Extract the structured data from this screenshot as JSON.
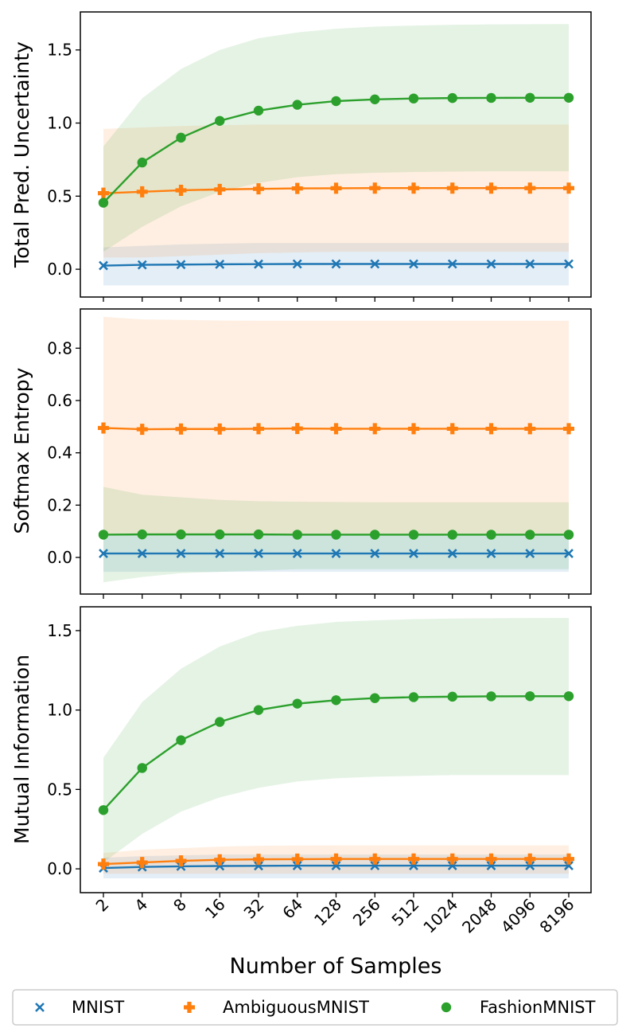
{
  "figure": {
    "xlabel": "Number of Samples",
    "x_tick_labels": [
      "2",
      "4",
      "8",
      "16",
      "32",
      "64",
      "128",
      "256",
      "512",
      "1024",
      "2048",
      "4096",
      "8196"
    ],
    "legend": [
      {
        "name": "MNIST",
        "marker": "x",
        "color": "#1f77b4"
      },
      {
        "name": "AmbiguousMNIST",
        "marker": "plus",
        "color": "#ff7f0e"
      },
      {
        "name": "FashionMNIST",
        "marker": "circle",
        "color": "#2ca02c"
      }
    ],
    "legend_placement": "bottom-center"
  },
  "chart_data": [
    {
      "type": "line",
      "ylabel": "Total Pred. Uncertainty",
      "ylim": [
        -0.19,
        1.76
      ],
      "yticks": [
        0.0,
        0.5,
        1.0,
        1.5
      ],
      "ytick_labels": [
        "0.0",
        "0.5",
        "1.0",
        "1.5"
      ],
      "x": [
        2,
        4,
        8,
        16,
        32,
        64,
        128,
        256,
        512,
        1024,
        2048,
        4096,
        8196
      ],
      "series": [
        {
          "name": "MNIST",
          "color": "#1f77b4",
          "marker": "x",
          "values": [
            0.025,
            0.03,
            0.032,
            0.034,
            0.035,
            0.036,
            0.036,
            0.036,
            0.036,
            0.036,
            0.036,
            0.036,
            0.036
          ],
          "band_lower": [
            -0.11,
            -0.11,
            -0.11,
            -0.11,
            -0.11,
            -0.11,
            -0.11,
            -0.11,
            -0.11,
            -0.11,
            -0.11,
            -0.11,
            -0.11
          ],
          "band_upper": [
            0.15,
            0.16,
            0.17,
            0.175,
            0.18,
            0.18,
            0.18,
            0.18,
            0.18,
            0.18,
            0.18,
            0.18,
            0.18
          ]
        },
        {
          "name": "AmbiguousMNIST",
          "color": "#ff7f0e",
          "marker": "plus",
          "values": [
            0.52,
            0.53,
            0.54,
            0.546,
            0.55,
            0.553,
            0.554,
            0.555,
            0.555,
            0.555,
            0.555,
            0.555,
            0.555
          ],
          "band_lower": [
            0.08,
            0.08,
            0.09,
            0.1,
            0.11,
            0.115,
            0.12,
            0.12,
            0.12,
            0.12,
            0.12,
            0.12,
            0.12
          ],
          "band_upper": [
            0.96,
            0.97,
            0.98,
            0.985,
            0.99,
            0.99,
            0.99,
            0.99,
            0.99,
            0.99,
            0.99,
            0.99,
            0.99
          ]
        },
        {
          "name": "FashionMNIST",
          "color": "#2ca02c",
          "marker": "circle",
          "values": [
            0.455,
            0.73,
            0.9,
            1.015,
            1.085,
            1.125,
            1.15,
            1.162,
            1.168,
            1.171,
            1.172,
            1.173,
            1.173
          ],
          "band_lower": [
            0.12,
            0.29,
            0.43,
            0.53,
            0.59,
            0.63,
            0.65,
            0.66,
            0.665,
            0.668,
            0.67,
            0.67,
            0.67
          ],
          "band_upper": [
            0.84,
            1.17,
            1.37,
            1.5,
            1.58,
            1.62,
            1.645,
            1.66,
            1.667,
            1.672,
            1.675,
            1.676,
            1.677
          ]
        }
      ]
    },
    {
      "type": "line",
      "ylabel": "Softmax Entropy",
      "ylim": [
        -0.14,
        0.95
      ],
      "yticks": [
        0.0,
        0.2,
        0.4,
        0.6,
        0.8
      ],
      "ytick_labels": [
        "0.0",
        "0.2",
        "0.4",
        "0.6",
        "0.8"
      ],
      "x": [
        2,
        4,
        8,
        16,
        32,
        64,
        128,
        256,
        512,
        1024,
        2048,
        4096,
        8196
      ],
      "series": [
        {
          "name": "MNIST",
          "color": "#1f77b4",
          "marker": "x",
          "values": [
            0.015,
            0.015,
            0.015,
            0.015,
            0.015,
            0.015,
            0.015,
            0.015,
            0.015,
            0.015,
            0.015,
            0.015,
            0.015
          ],
          "band_lower": [
            -0.055,
            -0.055,
            -0.055,
            -0.055,
            -0.055,
            -0.055,
            -0.055,
            -0.055,
            -0.055,
            -0.055,
            -0.055,
            -0.055,
            -0.055
          ],
          "band_upper": [
            0.085,
            0.085,
            0.085,
            0.085,
            0.085,
            0.085,
            0.085,
            0.085,
            0.085,
            0.085,
            0.085,
            0.085,
            0.085
          ]
        },
        {
          "name": "AmbiguousMNIST",
          "color": "#ff7f0e",
          "marker": "plus",
          "values": [
            0.495,
            0.49,
            0.491,
            0.491,
            0.492,
            0.493,
            0.492,
            0.492,
            0.492,
            0.492,
            0.492,
            0.492,
            0.492
          ],
          "band_lower": [
            0.085,
            0.085,
            0.085,
            0.085,
            0.085,
            0.085,
            0.085,
            0.085,
            0.085,
            0.085,
            0.085,
            0.085,
            0.085
          ],
          "band_upper": [
            0.92,
            0.91,
            0.908,
            0.906,
            0.905,
            0.905,
            0.905,
            0.905,
            0.905,
            0.905,
            0.905,
            0.905,
            0.905
          ]
        },
        {
          "name": "FashionMNIST",
          "color": "#2ca02c",
          "marker": "circle",
          "values": [
            0.087,
            0.088,
            0.088,
            0.088,
            0.088,
            0.087,
            0.087,
            0.087,
            0.087,
            0.087,
            0.087,
            0.087,
            0.087
          ],
          "band_lower": [
            -0.095,
            -0.075,
            -0.06,
            -0.055,
            -0.05,
            -0.045,
            -0.045,
            -0.045,
            -0.045,
            -0.045,
            -0.045,
            -0.045,
            -0.045
          ],
          "band_upper": [
            0.27,
            0.24,
            0.23,
            0.22,
            0.215,
            0.213,
            0.212,
            0.211,
            0.211,
            0.211,
            0.211,
            0.211,
            0.211
          ]
        }
      ]
    },
    {
      "type": "line",
      "ylabel": "Mutual Information",
      "ylabel2": "",
      "ylim": [
        -0.15,
        1.65
      ],
      "yticks": [
        0.0,
        0.5,
        1.0,
        1.5
      ],
      "ytick_labels": [
        "0.0",
        "0.5",
        "1.0",
        "1.5"
      ],
      "x": [
        2,
        4,
        8,
        16,
        32,
        64,
        128,
        256,
        512,
        1024,
        2048,
        4096,
        8196
      ],
      "series": [
        {
          "name": "MNIST",
          "color": "#1f77b4",
          "marker": "x",
          "values": [
            0.005,
            0.012,
            0.016,
            0.018,
            0.019,
            0.02,
            0.02,
            0.02,
            0.02,
            0.02,
            0.02,
            0.02,
            0.02
          ],
          "band_lower": [
            -0.06,
            -0.06,
            -0.06,
            -0.06,
            -0.06,
            -0.06,
            -0.06,
            -0.06,
            -0.06,
            -0.06,
            -0.06,
            -0.06,
            -0.06
          ],
          "band_upper": [
            0.07,
            0.08,
            0.085,
            0.09,
            0.09,
            0.09,
            0.09,
            0.09,
            0.09,
            0.09,
            0.09,
            0.09,
            0.09
          ]
        },
        {
          "name": "AmbiguousMNIST",
          "color": "#ff7f0e",
          "marker": "plus",
          "values": [
            0.03,
            0.04,
            0.05,
            0.057,
            0.06,
            0.061,
            0.062,
            0.062,
            0.062,
            0.062,
            0.062,
            0.062,
            0.062
          ],
          "band_lower": [
            -0.03,
            -0.03,
            -0.03,
            -0.03,
            -0.03,
            -0.03,
            -0.03,
            -0.03,
            -0.03,
            -0.03,
            -0.03,
            -0.03,
            -0.03
          ],
          "band_upper": [
            0.1,
            0.12,
            0.13,
            0.14,
            0.145,
            0.147,
            0.148,
            0.148,
            0.148,
            0.148,
            0.148,
            0.148,
            0.148
          ]
        },
        {
          "name": "FashionMNIST",
          "color": "#2ca02c",
          "marker": "circle",
          "values": [
            0.37,
            0.635,
            0.81,
            0.925,
            1.0,
            1.04,
            1.062,
            1.075,
            1.081,
            1.084,
            1.086,
            1.087,
            1.087
          ],
          "band_lower": [
            0.04,
            0.22,
            0.36,
            0.45,
            0.51,
            0.55,
            0.57,
            0.58,
            0.585,
            0.59,
            0.59,
            0.59,
            0.59
          ],
          "band_upper": [
            0.7,
            1.05,
            1.26,
            1.4,
            1.49,
            1.53,
            1.555,
            1.565,
            1.572,
            1.576,
            1.578,
            1.579,
            1.58
          ]
        }
      ]
    }
  ]
}
